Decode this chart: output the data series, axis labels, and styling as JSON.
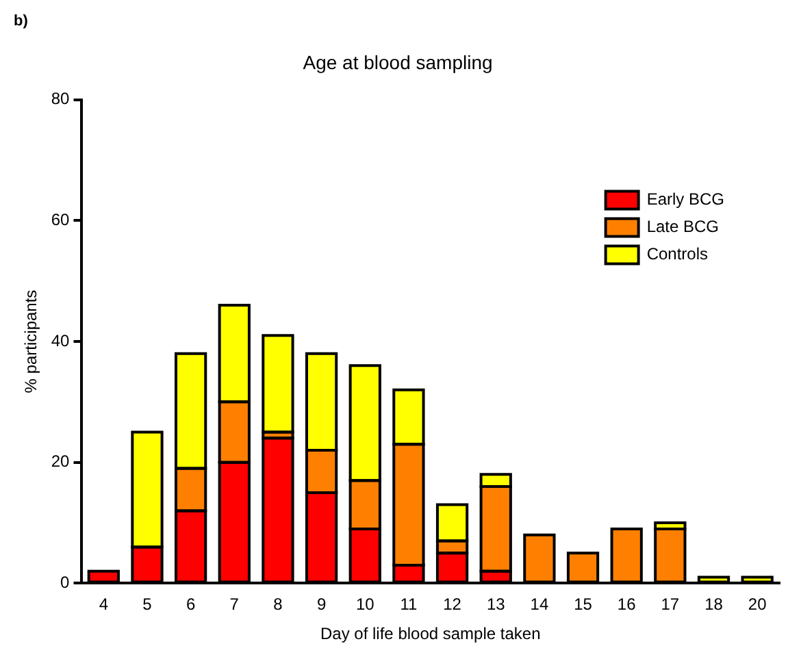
{
  "chart_data": {
    "type": "bar",
    "title": "Age at blood sampling",
    "xlabel": "Day of life blood sample taken",
    "ylabel": "% participants",
    "annotations": [
      "b)"
    ],
    "categories": [
      "4",
      "5",
      "6",
      "7",
      "8",
      "9",
      "10",
      "11",
      "12",
      "13",
      "14",
      "15",
      "16",
      "17",
      "18",
      "20"
    ],
    "stacked": true,
    "ylim": [
      0,
      80
    ],
    "yticks": [
      0,
      20,
      40,
      60,
      80
    ],
    "grid": false,
    "legend": "top right",
    "series": [
      {
        "name": "Early BCG",
        "color": "#ff0000",
        "values": [
          2,
          6,
          12,
          20,
          24,
          15,
          9,
          3,
          5,
          2,
          0,
          0,
          0,
          0,
          0,
          0
        ]
      },
      {
        "name": "Late BCG",
        "color": "#ff8000",
        "values": [
          0,
          0,
          7,
          10,
          1,
          7,
          8,
          20,
          2,
          14,
          8,
          5,
          9,
          9,
          0,
          0
        ]
      },
      {
        "name": "Controls",
        "color": "#ffff00",
        "values": [
          0,
          19,
          19,
          16,
          16,
          16,
          19,
          9,
          6,
          2,
          0,
          0,
          0,
          1,
          1,
          1
        ]
      }
    ]
  }
}
